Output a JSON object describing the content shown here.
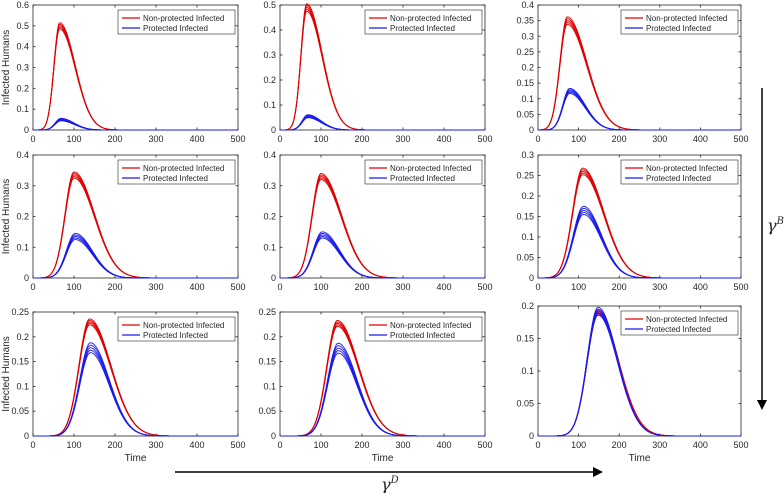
{
  "charts": [
    {
      "title": "",
      "xlabel": "",
      "ylabel": "Infected Humans",
      "xlim": [
        0,
        500
      ],
      "ylim": [
        0,
        0.6
      ],
      "xticks": [
        "0",
        "100",
        "200",
        "300",
        "400",
        "500"
      ],
      "yticks": [
        "0",
        "0.1",
        "0.2",
        "0.3",
        "0.4",
        "0.5",
        "0.6"
      ],
      "legend": [
        "Non-protected Infected",
        "Protected Infected"
      ],
      "chart_data": {
        "type": "line",
        "series": [
          {
            "name": "Non-protected Infected",
            "color": "#e00000",
            "peak_x": 65,
            "peak_y": 0.5,
            "band": 0.015,
            "rise_sigma": 14,
            "decay_sigma": 38
          },
          {
            "name": "Protected Infected",
            "color": "#1a1aee",
            "peak_x": 68,
            "peak_y": 0.05,
            "band": 0.006,
            "rise_sigma": 14,
            "decay_sigma": 32
          }
        ]
      }
    },
    {
      "title": "",
      "xlabel": "",
      "ylabel": "",
      "xlim": [
        0,
        500
      ],
      "ylim": [
        0,
        0.5
      ],
      "xticks": [
        "0",
        "100",
        "200",
        "300",
        "400",
        "500"
      ],
      "yticks": [
        "0",
        "0.1",
        "0.2",
        "0.3",
        "0.4",
        "0.5"
      ],
      "legend": [
        "Non-protected Infected",
        "Protected Infected"
      ],
      "chart_data": {
        "type": "line",
        "series": [
          {
            "name": "Non-protected Infected",
            "color": "#e00000",
            "peak_x": 65,
            "peak_y": 0.49,
            "band": 0.015,
            "rise_sigma": 14,
            "decay_sigma": 38
          },
          {
            "name": "Protected Infected",
            "color": "#1a1aee",
            "peak_x": 68,
            "peak_y": 0.055,
            "band": 0.006,
            "rise_sigma": 14,
            "decay_sigma": 32
          }
        ]
      }
    },
    {
      "title": "",
      "xlabel": "",
      "ylabel": "",
      "xlim": [
        0,
        500
      ],
      "ylim": [
        0,
        0.4
      ],
      "xticks": [
        "0",
        "100",
        "200",
        "300",
        "400",
        "500"
      ],
      "yticks": [
        "0",
        "0.05",
        "0.1",
        "0.15",
        "0.2",
        "0.25",
        "0.3",
        "0.35",
        "0.4"
      ],
      "legend": [
        "Non-protected Infected",
        "Protected Infected"
      ],
      "chart_data": {
        "type": "line",
        "series": [
          {
            "name": "Non-protected Infected",
            "color": "#e00000",
            "peak_x": 72,
            "peak_y": 0.35,
            "band": 0.012,
            "rise_sigma": 18,
            "decay_sigma": 48
          },
          {
            "name": "Protected Infected",
            "color": "#1a1aee",
            "peak_x": 78,
            "peak_y": 0.125,
            "band": 0.008,
            "rise_sigma": 17,
            "decay_sigma": 38
          }
        ]
      }
    },
    {
      "title": "",
      "xlabel": "",
      "ylabel": "Infected Humans",
      "xlim": [
        0,
        500
      ],
      "ylim": [
        0,
        0.4
      ],
      "xticks": [
        "0",
        "100",
        "200",
        "300",
        "400",
        "500"
      ],
      "yticks": [
        "0",
        "0.1",
        "0.2",
        "0.3",
        "0.4"
      ],
      "legend": [
        "Non-protected Infected",
        "Protected Infected"
      ],
      "chart_data": {
        "type": "line",
        "series": [
          {
            "name": "Non-protected Infected",
            "color": "#e00000",
            "peak_x": 100,
            "peak_y": 0.335,
            "band": 0.01,
            "rise_sigma": 22,
            "decay_sigma": 50
          },
          {
            "name": "Protected Infected",
            "color": "#1a1aee",
            "peak_x": 103,
            "peak_y": 0.135,
            "band": 0.01,
            "rise_sigma": 22,
            "decay_sigma": 42
          }
        ]
      }
    },
    {
      "title": "",
      "xlabel": "",
      "ylabel": "",
      "xlim": [
        0,
        500
      ],
      "ylim": [
        0,
        0.4
      ],
      "xticks": [
        "0",
        "100",
        "200",
        "300",
        "400",
        "500"
      ],
      "yticks": [
        "0",
        "0.1",
        "0.2",
        "0.3",
        "0.4"
      ],
      "legend": [
        "Non-protected Infected",
        "Protected Infected"
      ],
      "chart_data": {
        "type": "line",
        "series": [
          {
            "name": "Non-protected Infected",
            "color": "#e00000",
            "peak_x": 100,
            "peak_y": 0.33,
            "band": 0.01,
            "rise_sigma": 22,
            "decay_sigma": 50
          },
          {
            "name": "Protected Infected",
            "color": "#1a1aee",
            "peak_x": 103,
            "peak_y": 0.14,
            "band": 0.01,
            "rise_sigma": 22,
            "decay_sigma": 42
          }
        ]
      }
    },
    {
      "title": "",
      "xlabel": "",
      "ylabel": "",
      "xlim": [
        0,
        500
      ],
      "ylim": [
        0,
        0.3
      ],
      "xticks": [
        "0",
        "100",
        "200",
        "300",
        "400",
        "500"
      ],
      "yticks": [
        "0",
        "0.05",
        "0.1",
        "0.15",
        "0.2",
        "0.25",
        "0.3"
      ],
      "legend": [
        "Non-protected Infected",
        "Protected Infected"
      ],
      "chart_data": {
        "type": "line",
        "series": [
          {
            "name": "Non-protected Infected",
            "color": "#e00000",
            "peak_x": 110,
            "peak_y": 0.26,
            "band": 0.008,
            "rise_sigma": 25,
            "decay_sigma": 52
          },
          {
            "name": "Protected Infected",
            "color": "#1a1aee",
            "peak_x": 112,
            "peak_y": 0.165,
            "band": 0.01,
            "rise_sigma": 25,
            "decay_sigma": 44
          }
        ]
      }
    },
    {
      "title": "",
      "xlabel": "Time",
      "ylabel": "Infected Humans",
      "xlim": [
        0,
        500
      ],
      "ylim": [
        0,
        0.25
      ],
      "xticks": [
        "0",
        "100",
        "200",
        "300",
        "400",
        "500"
      ],
      "yticks": [
        "0",
        "0.05",
        "0.1",
        "0.15",
        "0.2",
        "0.25"
      ],
      "legend": [
        "Non-protected Infected",
        "Protected Infected"
      ],
      "chart_data": {
        "type": "line",
        "series": [
          {
            "name": "Non-protected Infected",
            "color": "#e00000",
            "peak_x": 138,
            "peak_y": 0.23,
            "band": 0.006,
            "rise_sigma": 26,
            "decay_sigma": 52
          },
          {
            "name": "Protected Infected",
            "color": "#1a1aee",
            "peak_x": 140,
            "peak_y": 0.178,
            "band": 0.01,
            "rise_sigma": 26,
            "decay_sigma": 46
          }
        ]
      }
    },
    {
      "title": "",
      "xlabel": "Time",
      "ylabel": "",
      "xlim": [
        0,
        500
      ],
      "ylim": [
        0,
        0.25
      ],
      "xticks": [
        "0",
        "100",
        "200",
        "300",
        "400",
        "500"
      ],
      "yticks": [
        "0",
        "0.05",
        "0.1",
        "0.15",
        "0.2",
        "0.25"
      ],
      "legend": [
        "Non-protected Infected",
        "Protected Infected"
      ],
      "chart_data": {
        "type": "line",
        "series": [
          {
            "name": "Non-protected Infected",
            "color": "#e00000",
            "peak_x": 140,
            "peak_y": 0.227,
            "band": 0.006,
            "rise_sigma": 26,
            "decay_sigma": 52
          },
          {
            "name": "Protected Infected",
            "color": "#1a1aee",
            "peak_x": 142,
            "peak_y": 0.177,
            "band": 0.01,
            "rise_sigma": 26,
            "decay_sigma": 46
          }
        ]
      }
    },
    {
      "title": "",
      "xlabel": "Time",
      "ylabel": "",
      "xlim": [
        0,
        500
      ],
      "ylim": [
        0,
        0.2
      ],
      "xticks": [
        "0",
        "100",
        "200",
        "300",
        "400",
        "500"
      ],
      "yticks": [
        "0",
        "0.05",
        "0.1",
        "0.15",
        "0.2"
      ],
      "legend": [
        "Non-protected Infected",
        "Protected Infected"
      ],
      "chart_data": {
        "type": "line",
        "series": [
          {
            "name": "Non-protected Infected",
            "color": "#e00000",
            "peak_x": 148,
            "peak_y": 0.19,
            "band": 0.004,
            "rise_sigma": 27,
            "decay_sigma": 50
          },
          {
            "name": "Protected Infected",
            "color": "#1a1aee",
            "peak_x": 148,
            "peak_y": 0.192,
            "band": 0.006,
            "rise_sigma": 27,
            "decay_sigma": 48
          }
        ]
      }
    }
  ],
  "arrows": {
    "vertical_label": "γ",
    "vertical_sup": "B",
    "horizontal_label": "γ",
    "horizontal_sup": "D"
  }
}
